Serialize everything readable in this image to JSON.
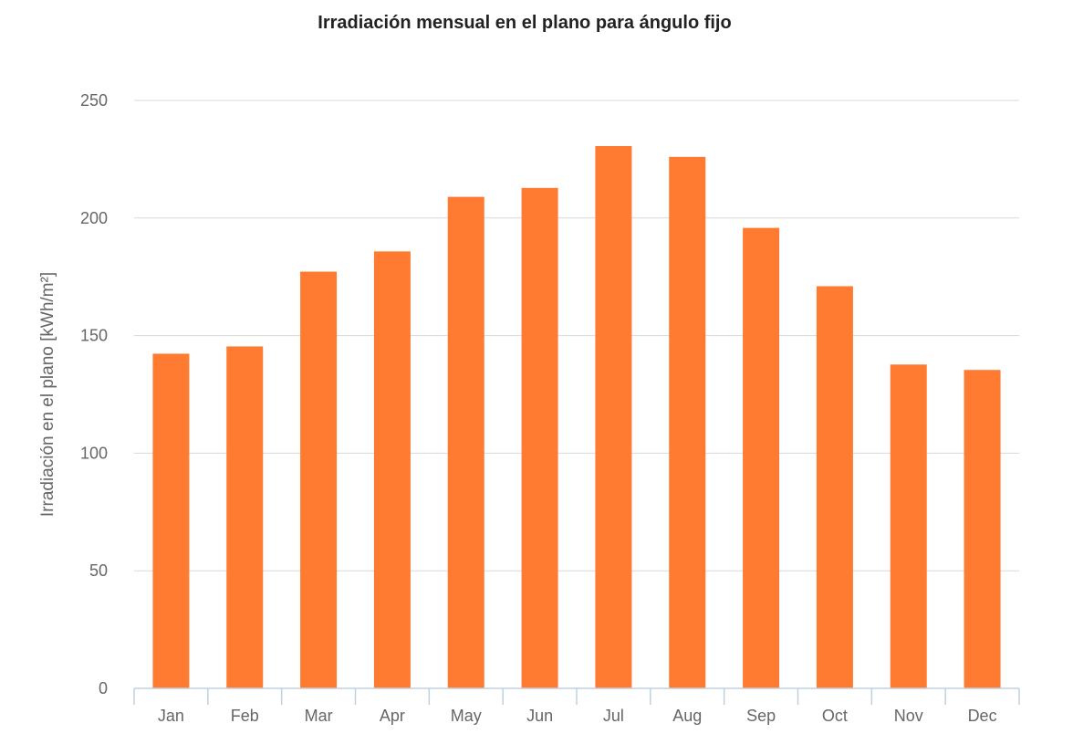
{
  "chart_data": {
    "type": "bar",
    "title": "Irradiación mensual en el plano para ángulo fijo",
    "xlabel": "",
    "ylabel": "Irradiación en el plano [kWh/m²]",
    "ylim": [
      0,
      250
    ],
    "yticks": [
      0,
      50,
      100,
      150,
      200,
      250
    ],
    "grid": true,
    "categories": [
      "Jan",
      "Feb",
      "Mar",
      "Apr",
      "May",
      "Jun",
      "Jul",
      "Aug",
      "Sep",
      "Oct",
      "Nov",
      "Dec"
    ],
    "values": [
      142.3,
      145.4,
      177.2,
      185.8,
      209.0,
      212.8,
      230.6,
      226.0,
      195.8,
      171.0,
      137.7,
      135.4
    ],
    "color": "#fe7b31"
  }
}
